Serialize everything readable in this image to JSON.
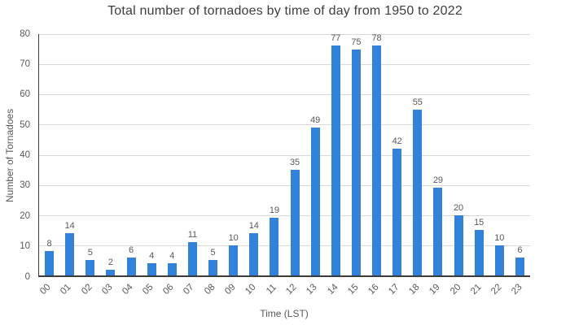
{
  "chart_data": {
    "type": "bar",
    "title": "Total number of tornadoes by time of day from 1950 to 2022",
    "xlabel": "Time (LST)",
    "ylabel": "Number of Tornadoes",
    "categories": [
      "00",
      "01",
      "02",
      "03",
      "04",
      "05",
      "06",
      "07",
      "08",
      "09",
      "10",
      "11",
      "12",
      "13",
      "14",
      "15",
      "16",
      "17",
      "18",
      "19",
      "20",
      "21",
      "22",
      "23"
    ],
    "values": [
      8,
      14,
      5,
      2,
      6,
      4,
      4,
      11,
      5,
      10,
      14,
      19,
      35,
      49,
      77,
      75,
      78,
      42,
      55,
      29,
      20,
      15,
      10,
      6
    ],
    "ylim": [
      0,
      80
    ],
    "ytick_step": 10,
    "grid": true,
    "legend_position": "none",
    "value_labels_shown": true,
    "bar_color": "#3182d8",
    "grid_color": "#d9d9d9",
    "axis_color": "#3c3c3c",
    "label_color": "#595959",
    "title_color": "#3d3d3d"
  }
}
